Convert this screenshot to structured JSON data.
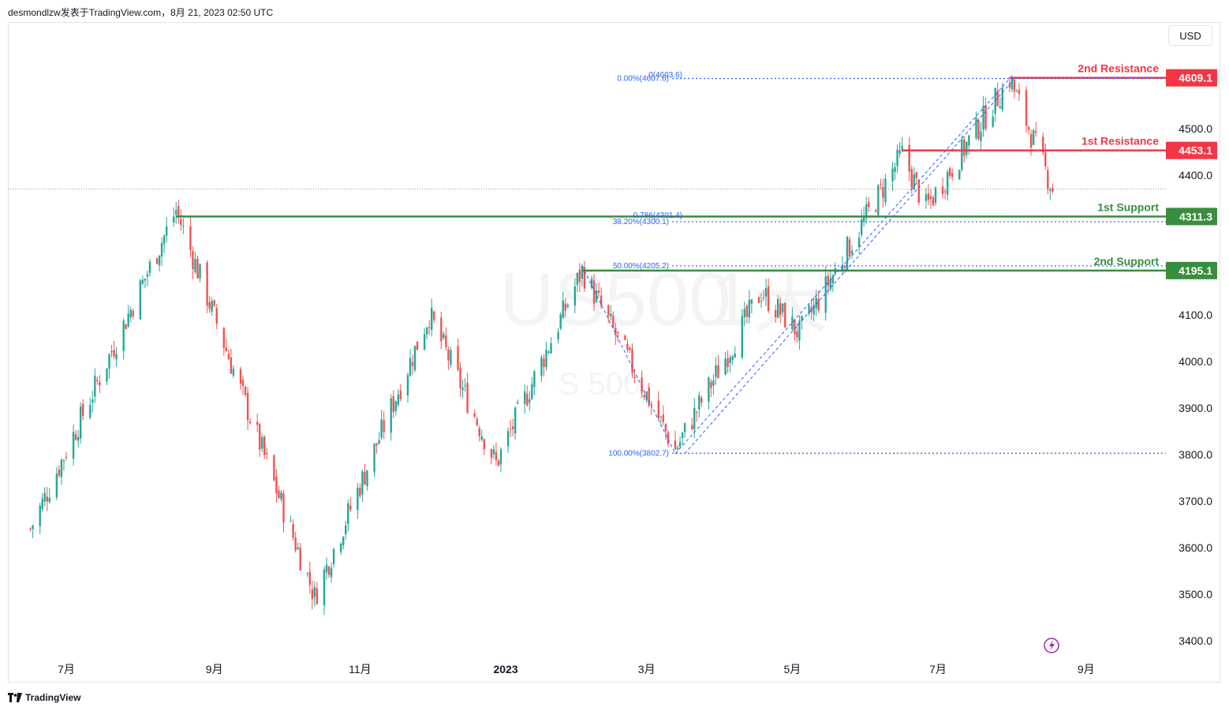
{
  "header": {
    "attribution": "desmondlzw发表于TradingView.com，8月 21, 2023 02:50 UTC"
  },
  "toolbar": {
    "currency_label": "USD"
  },
  "footer": {
    "logo_text": "TradingView"
  },
  "colors": {
    "up": "#26a69a",
    "down": "#ef5350",
    "resistance": "#f23645",
    "support": "#388e3c",
    "fib": "#2962ff"
  },
  "chart_data": {
    "type": "candlestick",
    "symbol_watermark": "US500",
    "interval_watermark": "1天",
    "sub_watermark": "S 500",
    "y_ticks": [
      {
        "value": 4500,
        "label": "4500.0"
      },
      {
        "value": 4400,
        "label": "4400.0"
      },
      {
        "value": 4100,
        "label": "4100.0"
      },
      {
        "value": 4000,
        "label": "4000.0"
      },
      {
        "value": 3900,
        "label": "3900.0"
      },
      {
        "value": 3800,
        "label": "3800.0"
      },
      {
        "value": 3700,
        "label": "3700.0"
      },
      {
        "value": 3600,
        "label": "3600.0"
      },
      {
        "value": 3500,
        "label": "3500.0"
      },
      {
        "value": 3400,
        "label": "3400.0"
      }
    ],
    "x_ticks": [
      {
        "date": "2022-07-01",
        "label": "7月",
        "bold": false
      },
      {
        "date": "2022-09-01",
        "label": "9月",
        "bold": false
      },
      {
        "date": "2022-11-01",
        "label": "11月",
        "bold": false
      },
      {
        "date": "2023-01-01",
        "label": "2023",
        "bold": true
      },
      {
        "date": "2023-03-01",
        "label": "3月",
        "bold": false
      },
      {
        "date": "2023-05-01",
        "label": "5月",
        "bold": false
      },
      {
        "date": "2023-07-01",
        "label": "7月",
        "bold": false
      },
      {
        "date": "2023-09-01",
        "label": "9月",
        "bold": false
      }
    ],
    "levels": [
      {
        "name": "2nd Resistance",
        "value": 4609.1,
        "label": "4609.1",
        "kind": "resistance",
        "start": "2023-07-31"
      },
      {
        "name": "1st Resistance",
        "value": 4453.1,
        "label": "4453.1",
        "kind": "resistance",
        "start": "2023-06-16"
      },
      {
        "name": "1st Support",
        "value": 4311.3,
        "label": "4311.3",
        "kind": "support",
        "start": "2022-08-16"
      },
      {
        "name": "2nd Support",
        "value": 4195.1,
        "label": "4195.1",
        "kind": "support",
        "start": "2023-02-02"
      }
    ],
    "fib_retracement": [
      {
        "label": "0.00%(4607.6)",
        "value": 4607.6
      },
      {
        "label": "38.20%(4300.1)",
        "value": 4300.1
      },
      {
        "label": "50.00%(4205.2)",
        "value": 4205.2
      },
      {
        "label": "100.00%(3802.7)",
        "value": 3802.7
      }
    ],
    "fib_extension": [
      {
        "label": "0(4603.6)",
        "value": 4603.6
      },
      {
        "label": "0.786(4301.4)",
        "value": 4301.4
      }
    ],
    "last_price": 4370,
    "trend_anchors": [
      {
        "date": "2022-06-16",
        "value": 3640
      },
      {
        "date": "2022-08-16",
        "value": 4325
      },
      {
        "date": "2022-10-13",
        "value": 3495
      },
      {
        "date": "2022-11-30",
        "value": 4100
      },
      {
        "date": "2022-12-28",
        "value": 3780
      },
      {
        "date": "2023-02-02",
        "value": 4195
      },
      {
        "date": "2023-03-13",
        "value": 3810
      },
      {
        "date": "2023-04-18",
        "value": 4150
      },
      {
        "date": "2023-05-04",
        "value": 4060
      },
      {
        "date": "2023-06-16",
        "value": 4445
      },
      {
        "date": "2023-06-26",
        "value": 4330
      },
      {
        "date": "2023-07-31",
        "value": 4607
      },
      {
        "date": "2023-08-18",
        "value": 4370
      }
    ]
  }
}
